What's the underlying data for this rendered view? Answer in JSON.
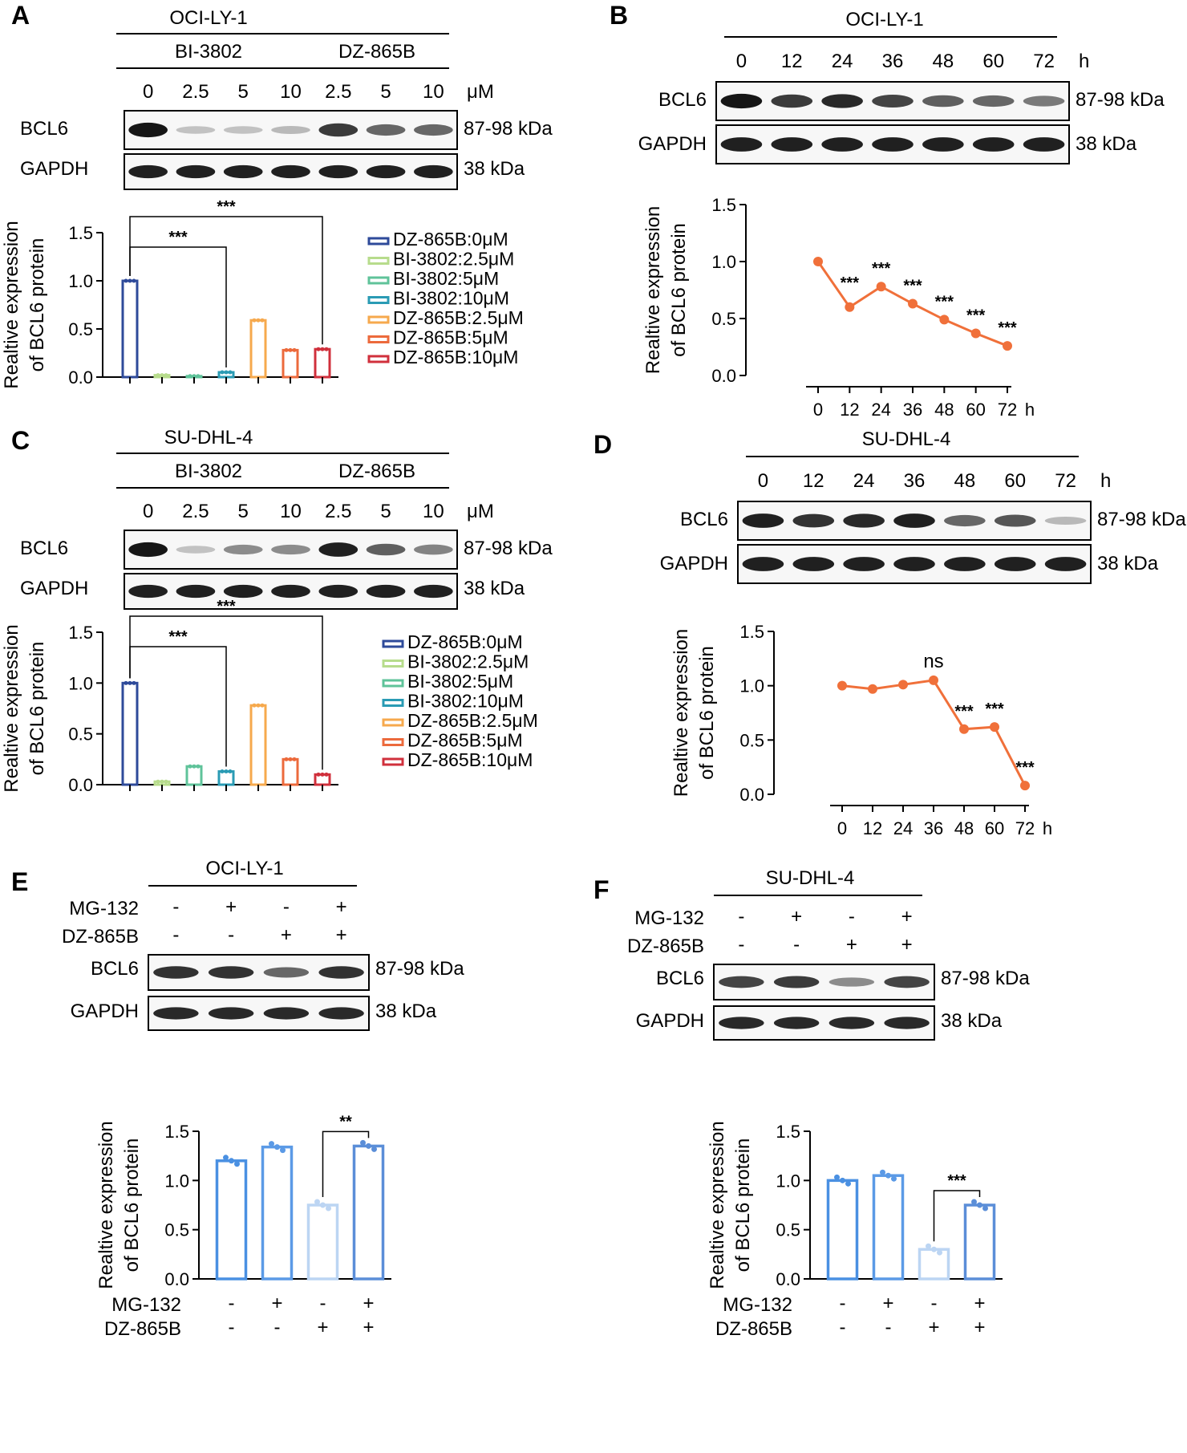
{
  "figure": {
    "panels": [
      {
        "id": "A",
        "kind": "dose",
        "cell_line": "OCI-LY-1",
        "group1": "BI-3802",
        "group2": "DZ-865B",
        "doses": [
          "0",
          "2.5",
          "5",
          "10",
          "2.5",
          "5",
          "10"
        ],
        "dose_unit": "μM",
        "row_labels": [
          "BCL6",
          "GAPDH"
        ],
        "weights": [
          "87-98 kDa",
          "38 kDa"
        ]
      },
      {
        "id": "B",
        "kind": "time",
        "cell_line": "OCI-LY-1",
        "times": [
          "0",
          "12",
          "24",
          "36",
          "48",
          "60",
          "72"
        ],
        "time_unit": "h",
        "row_labels": [
          "BCL6",
          "GAPDH"
        ],
        "weights": [
          "87-98 kDa",
          "38 kDa"
        ]
      },
      {
        "id": "C",
        "kind": "dose",
        "cell_line": "SU-DHL-4",
        "group1": "BI-3802",
        "group2": "DZ-865B",
        "doses": [
          "0",
          "2.5",
          "5",
          "10",
          "2.5",
          "5",
          "10"
        ],
        "dose_unit": "μM",
        "row_labels": [
          "BCL6",
          "GAPDH"
        ],
        "weights": [
          "87-98 kDa",
          "38 kDa"
        ]
      },
      {
        "id": "D",
        "kind": "time",
        "cell_line": "SU-DHL-4",
        "times": [
          "0",
          "12",
          "24",
          "36",
          "48",
          "60",
          "72"
        ],
        "time_unit": "h",
        "row_labels": [
          "BCL6",
          "GAPDH"
        ],
        "weights": [
          "87-98 kDa",
          "38 kDa"
        ]
      },
      {
        "id": "E",
        "kind": "mg",
        "cell_line": "OCI-LY-1",
        "treat_rows": [
          {
            "label": "MG-132",
            "signs": [
              "-",
              "+",
              "-",
              "+"
            ]
          },
          {
            "label": "DZ-865B",
            "signs": [
              "-",
              "-",
              "+",
              "+"
            ]
          }
        ],
        "row_labels": [
          "BCL6",
          "GAPDH"
        ],
        "weights": [
          "87-98 kDa",
          "38 kDa"
        ]
      },
      {
        "id": "F",
        "kind": "mg",
        "cell_line": "SU-DHL-4",
        "treat_rows": [
          {
            "label": "MG-132",
            "signs": [
              "-",
              "+",
              "-",
              "+"
            ]
          },
          {
            "label": "DZ-865B",
            "signs": [
              "-",
              "-",
              "+",
              "+"
            ]
          }
        ],
        "row_labels": [
          "BCL6",
          "GAPDH"
        ],
        "weights": [
          "87-98 kDa",
          "38 kDa"
        ]
      }
    ]
  },
  "chart_data": [
    {
      "panel": "A",
      "type": "bar",
      "ylabel": "Realtive expression of BCL6 protein",
      "ylim": [
        0,
        1.5
      ],
      "yticks": [
        "0.0",
        "0.5",
        "1.0",
        "1.5"
      ],
      "series": [
        {
          "name": "DZ-865B:0μM",
          "value": 1.0,
          "color": "#2e4a9a"
        },
        {
          "name": "BI-3802:2.5μM",
          "value": 0.02,
          "color": "#b7dc8c"
        },
        {
          "name": "BI-3802:5μM",
          "value": 0.01,
          "color": "#5fc39a"
        },
        {
          "name": "BI-3802:10μM",
          "value": 0.05,
          "color": "#2a9bb4"
        },
        {
          "name": "DZ-865B:2.5μM",
          "value": 0.59,
          "color": "#f6a94d"
        },
        {
          "name": "DZ-865B:5μM",
          "value": 0.28,
          "color": "#ec6a3c"
        },
        {
          "name": "DZ-865B:10μM",
          "value": 0.29,
          "color": "#d0303c"
        }
      ],
      "annotations": [
        {
          "text": "***",
          "from": 0,
          "to": 3
        },
        {
          "text": "***",
          "from": 0,
          "to": 6
        }
      ]
    },
    {
      "panel": "B",
      "type": "line",
      "ylabel": "Realtive expression of BCL6 protein",
      "ylim": [
        0,
        1.5
      ],
      "yticks": [
        "0.0",
        "0.5",
        "1.0",
        "1.5"
      ],
      "x": [
        "0",
        "12",
        "24",
        "36",
        "48",
        "60",
        "72"
      ],
      "x_unit": "h",
      "color": "#f0703a",
      "values": [
        1.0,
        0.6,
        0.78,
        0.63,
        0.49,
        0.37,
        0.26
      ],
      "labels": [
        "",
        "***",
        "***",
        "***",
        "***",
        "***",
        "***"
      ]
    },
    {
      "panel": "C",
      "type": "bar",
      "ylabel": "Realtive expression of BCL6 protein",
      "ylim": [
        0,
        1.5
      ],
      "yticks": [
        "0.0",
        "0.5",
        "1.0",
        "1.5"
      ],
      "series": [
        {
          "name": "DZ-865B:0μM",
          "value": 1.0,
          "color": "#2e4a9a"
        },
        {
          "name": "BI-3802:2.5μM",
          "value": 0.03,
          "color": "#b7dc8c"
        },
        {
          "name": "BI-3802:5μM",
          "value": 0.18,
          "color": "#5fc39a"
        },
        {
          "name": "BI-3802:10μM",
          "value": 0.13,
          "color": "#2a9bb4"
        },
        {
          "name": "DZ-865B:2.5μM",
          "value": 0.78,
          "color": "#f6a94d"
        },
        {
          "name": "DZ-865B:5μM",
          "value": 0.25,
          "color": "#ec6a3c"
        },
        {
          "name": "DZ-865B:10μM",
          "value": 0.1,
          "color": "#d0303c"
        }
      ],
      "annotations": [
        {
          "text": "***",
          "from": 0,
          "to": 3
        },
        {
          "text": "***",
          "from": 0,
          "to": 6
        }
      ]
    },
    {
      "panel": "D",
      "type": "line",
      "ylabel": "Realtive expression of BCL6 protein",
      "ylim": [
        0,
        1.5
      ],
      "yticks": [
        "0.0",
        "0.5",
        "1.0",
        "1.5"
      ],
      "x": [
        "0",
        "12",
        "24",
        "36",
        "48",
        "60",
        "72"
      ],
      "x_unit": "h",
      "color": "#f0703a",
      "values": [
        1.0,
        0.97,
        1.01,
        1.05,
        0.6,
        0.62,
        0.08
      ],
      "labels": [
        "",
        "",
        "",
        "ns",
        "***",
        "***",
        "***"
      ]
    },
    {
      "panel": "E",
      "type": "bar",
      "ylabel": "Realtive expression of BCL6 protein",
      "ylim": [
        0,
        1.5
      ],
      "yticks": [
        "0.0",
        "0.5",
        "1.0",
        "1.5"
      ],
      "values": [
        1.2,
        1.34,
        0.75,
        1.35
      ],
      "colors": [
        "#4a90e2",
        "#5b9ae6",
        "#bcd5f3",
        "#5b8ed8"
      ],
      "categories": [
        [
          "-",
          "-"
        ],
        [
          "+",
          "-"
        ],
        [
          "-",
          "+"
        ],
        [
          "+",
          "+"
        ]
      ],
      "row_labels": [
        "MG-132",
        "DZ-865B"
      ],
      "annotation": {
        "text": "**",
        "from": 2,
        "to": 3
      }
    },
    {
      "panel": "F",
      "type": "bar",
      "ylabel": "Realtive expression of BCL6 protein",
      "ylim": [
        0,
        1.5
      ],
      "yticks": [
        "0.0",
        "0.5",
        "1.0",
        "1.5"
      ],
      "values": [
        1.0,
        1.05,
        0.3,
        0.75
      ],
      "colors": [
        "#4a90e2",
        "#5b9ae6",
        "#bcd5f3",
        "#5b8ed8"
      ],
      "categories": [
        [
          "-",
          "-"
        ],
        [
          "+",
          "-"
        ],
        [
          "-",
          "+"
        ],
        [
          "+",
          "+"
        ]
      ],
      "row_labels": [
        "MG-132",
        "DZ-865B"
      ],
      "annotation": {
        "text": "***",
        "from": 2,
        "to": 3
      }
    }
  ]
}
